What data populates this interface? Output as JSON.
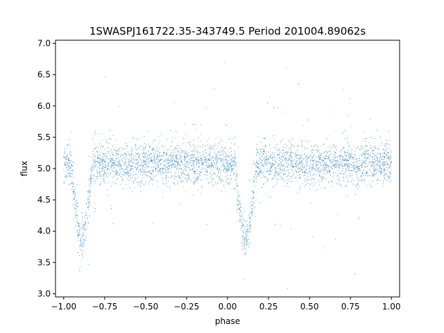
{
  "chart_data": {
    "type": "scatter",
    "title": "1SWASPJ161722.35-343749.5 Period 201004.89062s",
    "xlabel": "phase",
    "ylabel": "flux",
    "xlim": [
      -1.05,
      1.05
    ],
    "ylim": [
      2.95,
      7.05
    ],
    "xticks": [
      -1.0,
      -0.75,
      -0.5,
      -0.25,
      0.0,
      0.25,
      0.5,
      0.75,
      1.0
    ],
    "xtick_labels": [
      "−1.00",
      "−0.75",
      "−0.50",
      "−0.25",
      "0.00",
      "0.25",
      "0.50",
      "0.75",
      "1.00"
    ],
    "yticks": [
      3.0,
      3.5,
      4.0,
      4.5,
      5.0,
      5.5,
      6.0,
      6.5,
      7.0
    ],
    "ytick_labels": [
      "3.0",
      "3.5",
      "4.0",
      "4.5",
      "5.0",
      "5.5",
      "6.0",
      "6.5",
      "7.0"
    ],
    "grid": false,
    "point_color": "#1f77b4",
    "light_curve": {
      "baseline_flux": 5.08,
      "baseline_scatter": 0.16,
      "primary_minimum": {
        "phase": 0.11,
        "flux": 3.85,
        "half_width": 0.065
      },
      "phase_range": [
        -1.0,
        1.0
      ],
      "period_phase": 1.0
    }
  }
}
